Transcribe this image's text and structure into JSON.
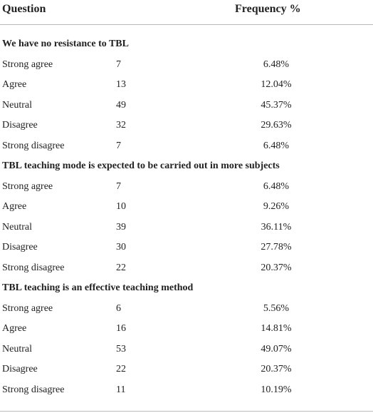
{
  "table": {
    "header": [
      "Question",
      "Frequency %"
    ],
    "sections": [
      {
        "title": "We have no resistance to TBL",
        "rows": [
          [
            "Strong agree",
            7,
            "6.48%"
          ],
          [
            "Agree",
            13,
            "12.04%"
          ],
          [
            "Neutral",
            49,
            "45.37%"
          ],
          [
            "Disagree",
            32,
            "29.63%"
          ],
          [
            "Strong disagree",
            7,
            "6.48%"
          ]
        ]
      },
      {
        "title": "TBL teaching mode is expected to be carried out in more subjects",
        "rows": [
          [
            "Strong agree",
            7,
            "6.48%"
          ],
          [
            "Agree",
            10,
            "9.26%"
          ],
          [
            "Neutral",
            39,
            "36.11%"
          ],
          [
            "Disagree",
            30,
            "27.78%"
          ],
          [
            "Strong disagree",
            22,
            "20.37%"
          ]
        ]
      },
      {
        "title": "TBL teaching is an effective teaching method",
        "rows": [
          [
            "Strong agree",
            6,
            "5.56%"
          ],
          [
            "Agree",
            16,
            "14.81%"
          ],
          [
            "Neutral",
            53,
            "49.07%"
          ],
          [
            "Disagree",
            22,
            "20.37%"
          ],
          [
            "Strong disagree",
            11,
            "10.19%"
          ]
        ]
      }
    ]
  }
}
